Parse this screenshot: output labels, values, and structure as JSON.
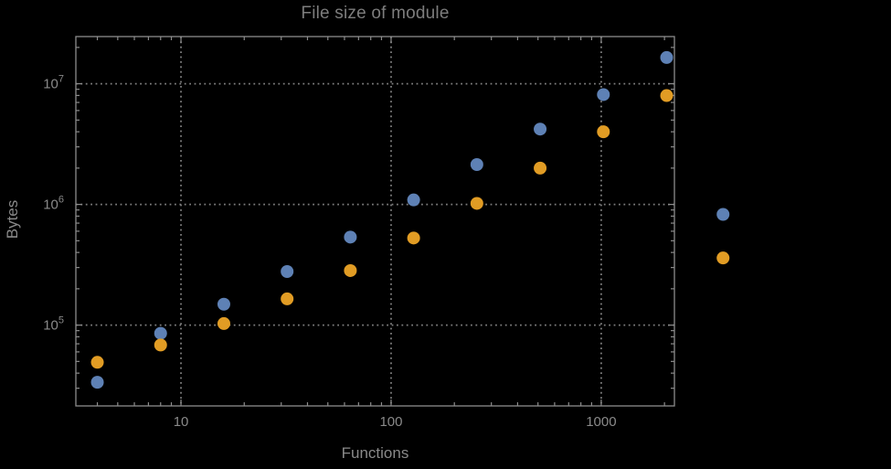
{
  "colors": {
    "background": "#000000",
    "frame": "#8c8c8c",
    "gridline": "#7d7d7d",
    "tick_text": "#8a8a8a",
    "title_text": "#7d7d7d",
    "series_blue": "#5E81B5",
    "series_orange": "#E19C24"
  },
  "chart_data": {
    "type": "scatter",
    "title": "File size of module",
    "xlabel": "Functions",
    "ylabel": "Bytes",
    "x_scale": "log",
    "y_scale": "log",
    "xlim": [
      3.16,
      2230
    ],
    "ylim": [
      21400,
      24600000
    ],
    "grid": "dotted gridlines at major ticks, frame on all four sides with inward log minor ticks",
    "legend_position": "none",
    "x_ticks": [
      {
        "value": 10,
        "label": "10"
      },
      {
        "value": 100,
        "label": "100"
      },
      {
        "value": 1000,
        "label": "1000"
      }
    ],
    "y_ticks": [
      {
        "value": 100000,
        "base": "10",
        "exponent": "5"
      },
      {
        "value": 1000000,
        "base": "10",
        "exponent": "6"
      },
      {
        "value": 10000000,
        "base": "10",
        "exponent": "7"
      }
    ],
    "series": [
      {
        "name": "blue",
        "color": "#5E81B5",
        "points": [
          [
            4,
            33600
          ],
          [
            8,
            85500
          ],
          [
            16,
            149000
          ],
          [
            32,
            278000
          ],
          [
            64,
            536000
          ],
          [
            128,
            1090000
          ],
          [
            256,
            2140000
          ],
          [
            512,
            4210000
          ],
          [
            1024,
            8130000
          ],
          [
            2048,
            16500000
          ],
          [
            3800,
            827000
          ]
        ]
      },
      {
        "name": "orange",
        "color": "#E19C24",
        "points": [
          [
            4,
            49200
          ],
          [
            8,
            68400
          ],
          [
            16,
            103000
          ],
          [
            32,
            165000
          ],
          [
            64,
            283000
          ],
          [
            128,
            527000
          ],
          [
            256,
            1020000
          ],
          [
            512,
            2000000
          ],
          [
            1024,
            4000000
          ],
          [
            2048,
            7980000
          ],
          [
            3800,
            360000
          ]
        ]
      }
    ]
  }
}
